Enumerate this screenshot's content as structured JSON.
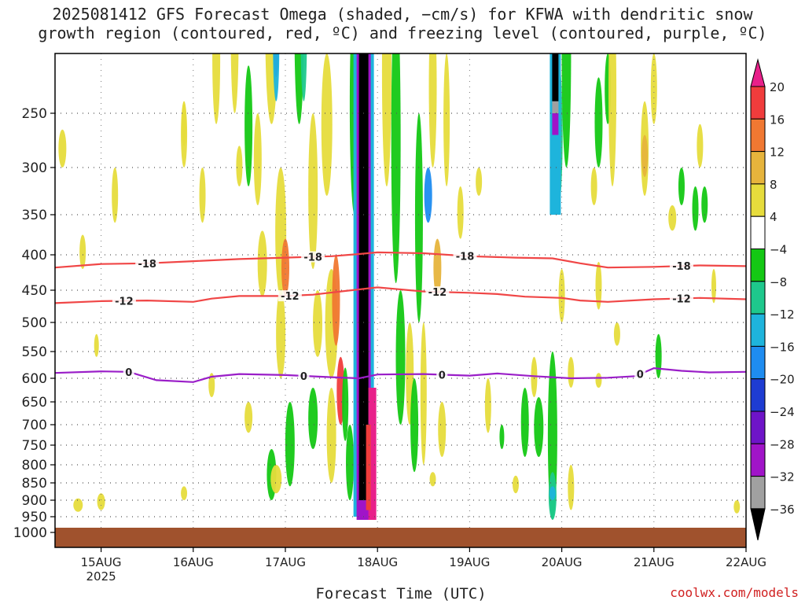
{
  "title_line1": "2025081412 GFS Forecast Omega (shaded, −cm/s) for KFWA with dendritic snow",
  "title_line2": "growth region (contoured, red, ºC) and freezing level (contoured, purple, ºC)",
  "credit": "coolwx.com/models",
  "chart_data": {
    "type": "heatmap",
    "title": "2025081412 GFS Forecast Omega (shaded, −cm/s) for KFWA with dendritic snow growth region (contoured, red, ºC) and freezing level (contoured, purple, ºC)",
    "xlabel": "Forecast Time (UTC)",
    "ylabel": "",
    "x_ticks": [
      "15AUG",
      "16AUG",
      "17AUG",
      "18AUG",
      "19AUG",
      "20AUG",
      "21AUG",
      "22AUG"
    ],
    "x_year": "2025",
    "xlim_days": [
      14.5,
      22.0
    ],
    "y_ticks": [
      250,
      300,
      350,
      400,
      450,
      500,
      550,
      600,
      650,
      700,
      750,
      800,
      850,
      900,
      950,
      1000
    ],
    "ylim_hpa": [
      200,
      1000
    ],
    "colorbar": {
      "labels": [
        "20",
        "16",
        "12",
        "8",
        "4",
        "−4",
        "−8",
        "−12",
        "−16",
        "−20",
        "−24",
        "−28",
        "−32",
        "−36"
      ],
      "colors": [
        "#e8208a",
        "#f03c3c",
        "#f07832",
        "#e6b43c",
        "#e6dc3c",
        "#ffffff",
        "#14c814",
        "#1ec88c",
        "#1eb4dc",
        "#1e8cf0",
        "#1e3cd2",
        "#6e14c8",
        "#a014c8",
        "#a0a0a0",
        "#000000"
      ]
    },
    "contours": [
      {
        "label": "-18",
        "color": "#f04646",
        "points": [
          [
            14.5,
            418
          ],
          [
            15.0,
            413
          ],
          [
            15.5,
            412
          ],
          [
            16.0,
            409
          ],
          [
            16.5,
            406
          ],
          [
            17.0,
            404
          ],
          [
            17.5,
            402
          ],
          [
            17.8,
            399
          ],
          [
            18.0,
            397
          ],
          [
            18.5,
            398
          ],
          [
            19.0,
            402
          ],
          [
            19.5,
            404
          ],
          [
            19.9,
            405
          ],
          [
            20.2,
            412
          ],
          [
            20.5,
            418
          ],
          [
            21.0,
            417
          ],
          [
            21.5,
            415
          ],
          [
            22.0,
            416
          ]
        ],
        "labels_at": [
          15.5,
          17.3,
          18.95,
          21.3
        ]
      },
      {
        "label": "-12",
        "color": "#f04646",
        "points": [
          [
            14.5,
            470
          ],
          [
            15.0,
            467
          ],
          [
            15.5,
            466
          ],
          [
            16.0,
            468
          ],
          [
            16.2,
            463
          ],
          [
            16.5,
            459
          ],
          [
            17.0,
            459
          ],
          [
            17.3,
            457
          ],
          [
            17.6,
            452
          ],
          [
            18.0,
            446
          ],
          [
            18.5,
            452
          ],
          [
            19.0,
            454
          ],
          [
            19.3,
            456
          ],
          [
            19.6,
            460
          ],
          [
            20.0,
            462
          ],
          [
            20.2,
            466
          ],
          [
            20.5,
            468
          ],
          [
            21.0,
            464
          ],
          [
            21.5,
            462
          ],
          [
            22.0,
            464
          ]
        ],
        "labels_at": [
          15.25,
          17.05,
          18.65,
          21.3
        ]
      },
      {
        "label": "0",
        "color": "#9a1ec8",
        "points": [
          [
            14.5,
            590
          ],
          [
            15.0,
            587
          ],
          [
            15.3,
            588
          ],
          [
            15.6,
            604
          ],
          [
            16.0,
            608
          ],
          [
            16.2,
            597
          ],
          [
            16.5,
            592
          ],
          [
            17.0,
            594
          ],
          [
            17.5,
            598
          ],
          [
            17.8,
            600
          ],
          [
            18.0,
            593
          ],
          [
            18.5,
            592
          ],
          [
            19.0,
            595
          ],
          [
            19.3,
            591
          ],
          [
            19.7,
            596
          ],
          [
            20.1,
            600
          ],
          [
            20.5,
            599
          ],
          [
            20.8,
            596
          ],
          [
            21.0,
            581
          ],
          [
            21.3,
            586
          ],
          [
            21.6,
            589
          ],
          [
            22.0,
            588
          ]
        ],
        "labels_at": [
          15.3,
          17.2,
          18.7,
          20.85
        ]
      }
    ]
  }
}
